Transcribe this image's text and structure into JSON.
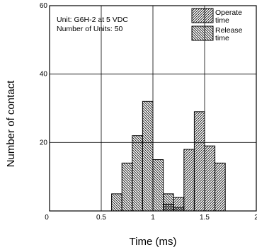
{
  "chart_data": {
    "type": "bar",
    "xlabel": "Time (ms)",
    "ylabel": "Number of contact",
    "xlim": [
      0,
      2
    ],
    "ylim": [
      0,
      60
    ],
    "x_ticks": [
      "0",
      "0.5",
      "1",
      "1.5",
      "2"
    ],
    "y_ticks": [
      "0",
      "20",
      "40",
      "60"
    ],
    "x_tick_values": [
      0,
      0.5,
      1,
      1.5,
      2
    ],
    "y_tick_values": [
      0,
      20,
      40,
      60
    ],
    "grid": true,
    "legend_position": "top-right",
    "annotation": {
      "line1": "Unit: G6H-2 at 5 VDC",
      "line2": "Number of Units: 50"
    },
    "series": [
      {
        "name_line1": "Release",
        "name_line2": "time",
        "hatch": "back-diagonal",
        "bins": [
          {
            "x0": 0.6,
            "x1": 0.7,
            "value": 5
          },
          {
            "x0": 0.7,
            "x1": 0.8,
            "value": 14
          },
          {
            "x0": 0.8,
            "x1": 0.9,
            "value": 22
          },
          {
            "x0": 0.9,
            "x1": 1.0,
            "value": 32
          },
          {
            "x0": 1.0,
            "x1": 1.1,
            "value": 15
          },
          {
            "x0": 1.1,
            "x1": 1.2,
            "value": 5
          },
          {
            "x0": 1.2,
            "x1": 1.3,
            "value": 1
          }
        ]
      },
      {
        "name_line1": "Operate",
        "name_line2": "time",
        "hatch": "forward-diagonal",
        "bins": [
          {
            "x0": 1.1,
            "x1": 1.2,
            "value": 2
          },
          {
            "x0": 1.2,
            "x1": 1.3,
            "value": 4
          },
          {
            "x0": 1.3,
            "x1": 1.4,
            "value": 18
          },
          {
            "x0": 1.4,
            "x1": 1.5,
            "value": 29
          },
          {
            "x0": 1.5,
            "x1": 1.6,
            "value": 19
          },
          {
            "x0": 1.6,
            "x1": 1.7,
            "value": 14
          }
        ]
      }
    ]
  }
}
